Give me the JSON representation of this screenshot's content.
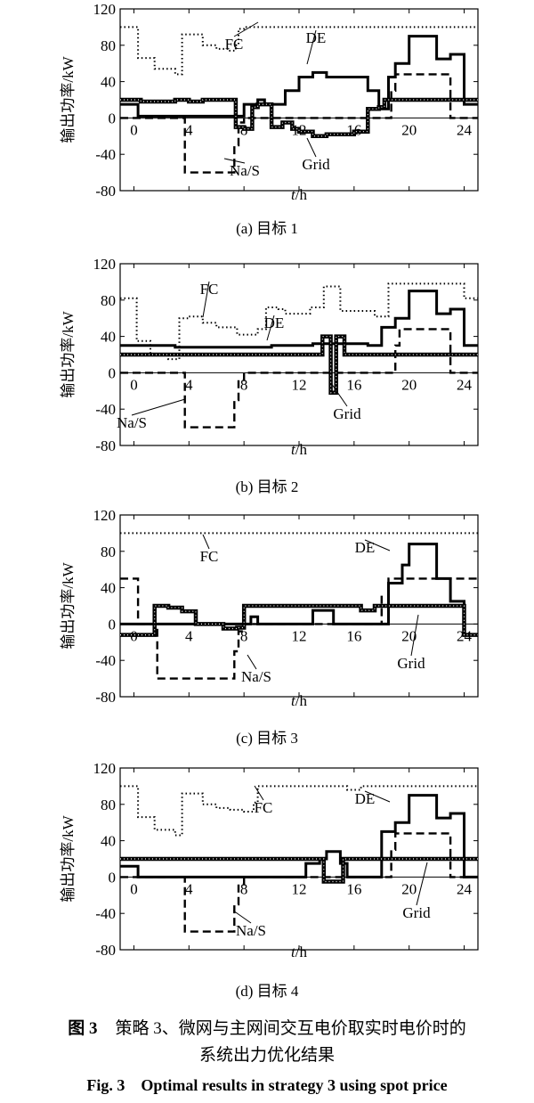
{
  "figure": {
    "caption_cn_prefix": "图 3",
    "caption_cn_text": "策略 3、微网与主网间交互电价取实时电价时的",
    "caption_cn_text2": "系统出力优化结果",
    "caption_en_prefix": "Fig. 3",
    "caption_en_text": "Optimal results in strategy 3 using spot price"
  },
  "chart_data": [
    {
      "type": "line",
      "subtitle": "(a)  目标 1",
      "ylabel": "输出功率/kW",
      "xlabel_italic": "t",
      "xlabel_unit": "/h",
      "xlim": [
        -1,
        25
      ],
      "ylim": [
        -80,
        120
      ],
      "xticks": [
        0,
        4,
        8,
        12,
        16,
        20,
        24
      ],
      "yticks": [
        -80,
        -40,
        0,
        40,
        80,
        120
      ],
      "series": [
        {
          "name": "FC",
          "style": "dotted",
          "x": [
            -1,
            0.3,
            0.3,
            1.5,
            1.5,
            3,
            3,
            3.5,
            3.5,
            5,
            5,
            6,
            6,
            6.8,
            6.8,
            7.4,
            7.4,
            7.6,
            7.6,
            8,
            8,
            25
          ],
          "y": [
            100,
            100,
            66,
            66,
            54,
            54,
            48,
            48,
            92,
            92,
            80,
            80,
            76,
            76,
            74,
            74,
            80,
            80,
            98,
            98,
            100,
            100
          ]
        },
        {
          "name": "DE",
          "style": "solid",
          "x": [
            -1,
            0.3,
            0.3,
            8,
            8,
            9,
            9,
            9.5,
            9.5,
            11,
            11,
            12,
            12,
            13,
            13,
            14,
            14,
            17,
            17,
            17.8,
            17.8,
            18.5,
            18.5,
            19,
            19,
            20,
            20,
            22,
            22,
            23,
            23,
            24,
            24,
            25
          ],
          "y": [
            15,
            15,
            2,
            2,
            15,
            15,
            20,
            20,
            15,
            15,
            30,
            30,
            45,
            45,
            50,
            50,
            45,
            45,
            30,
            30,
            10,
            10,
            45,
            45,
            60,
            60,
            90,
            90,
            65,
            65,
            70,
            70,
            15,
            15
          ]
        },
        {
          "name": "Na/S",
          "style": "dashed",
          "x": [
            -1,
            3.7,
            3.7,
            7.3,
            7.3,
            7.6,
            7.6,
            8,
            8,
            18.7,
            18.7,
            19,
            19,
            23,
            23,
            25
          ],
          "y": [
            0,
            0,
            -60,
            -60,
            -30,
            -30,
            -5,
            -5,
            0,
            0,
            30,
            30,
            48,
            48,
            0,
            0
          ]
        },
        {
          "name": "Grid",
          "style": "thick-marker",
          "x": [
            -1,
            0.5,
            0.5,
            3,
            3,
            4,
            4,
            5,
            5,
            7.4,
            7.4,
            8,
            8,
            8.6,
            8.6,
            9,
            9,
            10,
            10,
            10.8,
            10.8,
            11.5,
            11.5,
            12,
            12,
            13,
            13,
            14,
            14,
            16,
            16,
            17,
            17,
            17.8,
            17.8,
            18.2,
            18.2,
            25
          ],
          "y": [
            20,
            20,
            18,
            18,
            20,
            20,
            18,
            18,
            20,
            20,
            -10,
            -10,
            -12,
            -12,
            12,
            12,
            15,
            15,
            -10,
            -10,
            -5,
            -5,
            -12,
            -12,
            -15,
            -15,
            -20,
            -20,
            -18,
            -18,
            -15,
            -15,
            10,
            10,
            12,
            12,
            20,
            20
          ]
        }
      ],
      "annotations": [
        "FC",
        "DE",
        "Na/S",
        "Grid"
      ]
    },
    {
      "type": "line",
      "subtitle": "(b)  目标 2",
      "ylabel": "输出功率/kW",
      "xlabel_italic": "t",
      "xlabel_unit": "/h",
      "xlim": [
        -1,
        25
      ],
      "ylim": [
        -80,
        120
      ],
      "xticks": [
        0,
        4,
        8,
        12,
        16,
        20,
        24
      ],
      "yticks": [
        -80,
        -40,
        0,
        40,
        80,
        120
      ],
      "series": [
        {
          "name": "FC",
          "style": "dotted",
          "x": [
            -1,
            0.2,
            0.2,
            1.2,
            1.2,
            2.5,
            2.5,
            3.3,
            3.3,
            4,
            4,
            5,
            5,
            6,
            6,
            7.5,
            7.5,
            9,
            9,
            9.6,
            9.6,
            10.5,
            10.5,
            11,
            11,
            12.8,
            12.8,
            13.8,
            13.8,
            15,
            15,
            17.5,
            17.5,
            18.5,
            18.5,
            24,
            24,
            25
          ],
          "y": [
            82,
            82,
            35,
            35,
            20,
            20,
            15,
            15,
            60,
            60,
            62,
            62,
            55,
            55,
            50,
            50,
            42,
            42,
            48,
            48,
            72,
            72,
            70,
            70,
            65,
            65,
            72,
            72,
            95,
            95,
            68,
            68,
            62,
            62,
            98,
            98,
            82,
            82
          ]
        },
        {
          "name": "DE",
          "style": "solid",
          "x": [
            -1,
            3,
            3,
            10,
            10,
            13,
            13,
            17,
            17,
            18,
            18,
            19,
            19,
            20,
            20,
            22,
            22,
            23,
            23,
            24,
            24,
            25
          ],
          "y": [
            30,
            30,
            28,
            28,
            30,
            30,
            32,
            32,
            30,
            30,
            50,
            50,
            60,
            60,
            90,
            90,
            65,
            65,
            70,
            70,
            30,
            30
          ]
        },
        {
          "name": "Na/S",
          "style": "dashed",
          "x": [
            -1,
            3.7,
            3.7,
            7.3,
            7.3,
            7.6,
            7.6,
            8,
            8,
            19,
            19,
            19.3,
            19.3,
            23,
            23,
            25
          ],
          "y": [
            0,
            0,
            -60,
            -60,
            -30,
            -30,
            -8,
            -8,
            0,
            0,
            30,
            30,
            48,
            48,
            0,
            0
          ]
        },
        {
          "name": "Grid",
          "style": "thick-marker",
          "x": [
            -1,
            13.7,
            13.7,
            14.3,
            14.3,
            14.7,
            14.7,
            15.3,
            15.3,
            25
          ],
          "y": [
            20,
            20,
            40,
            40,
            -22,
            -22,
            40,
            40,
            20,
            20
          ]
        }
      ],
      "annotations": [
        "FC",
        "DE",
        "Na/S",
        "Grid"
      ]
    },
    {
      "type": "line",
      "subtitle": "(c)  目标 3",
      "ylabel": "输出功率/kW",
      "xlabel_italic": "t",
      "xlabel_unit": "/h",
      "xlim": [
        -1,
        25
      ],
      "ylim": [
        -80,
        120
      ],
      "xticks": [
        0,
        4,
        8,
        12,
        16,
        20,
        24
      ],
      "yticks": [
        -80,
        -40,
        0,
        40,
        80,
        120
      ],
      "series": [
        {
          "name": "FC",
          "style": "dotted",
          "x": [
            -1,
            25
          ],
          "y": [
            100,
            100
          ]
        },
        {
          "name": "DE",
          "style": "solid",
          "x": [
            -1,
            0.2,
            0.2,
            8,
            8,
            8.5,
            8.5,
            9,
            9,
            10,
            10,
            13,
            13,
            14.5,
            14.5,
            17.5,
            17.5,
            18.5,
            18.5,
            19.5,
            19.5,
            20,
            20,
            22,
            22,
            23,
            23,
            24,
            24,
            25
          ],
          "y": [
            0,
            0,
            0,
            0,
            0,
            0,
            8,
            8,
            0,
            0,
            0,
            0,
            15,
            15,
            0,
            0,
            0,
            0,
            45,
            45,
            65,
            65,
            88,
            88,
            50,
            50,
            25,
            25,
            -12,
            -12
          ]
        },
        {
          "name": "Na/S",
          "style": "dashed",
          "x": [
            -1,
            0.3,
            0.3,
            1.7,
            1.7,
            7.3,
            7.3,
            7.6,
            7.6,
            8,
            8,
            18,
            18,
            18.5,
            18.5,
            25
          ],
          "y": [
            50,
            50,
            0,
            0,
            -60,
            -60,
            -30,
            -30,
            -8,
            -8,
            0,
            0,
            30,
            30,
            50,
            50
          ]
        },
        {
          "name": "Grid",
          "style": "thick-marker",
          "x": [
            -1,
            1.5,
            1.5,
            2.5,
            2.5,
            3.5,
            3.5,
            4.5,
            4.5,
            6.5,
            6.5,
            7.5,
            7.5,
            8,
            8,
            16.5,
            16.5,
            17.5,
            17.5,
            24,
            24,
            25
          ],
          "y": [
            -12,
            -12,
            20,
            20,
            18,
            18,
            14,
            14,
            0,
            0,
            -5,
            -5,
            -4,
            -4,
            20,
            20,
            15,
            15,
            20,
            20,
            -12,
            -12
          ]
        }
      ],
      "annotations": [
        "FC",
        "DE",
        "Na/S",
        "Grid"
      ]
    },
    {
      "type": "line",
      "subtitle": "(d)  目标 4",
      "ylabel": "输出功率/kW",
      "xlabel_italic": "t",
      "xlabel_unit": "/h",
      "xlim": [
        -1,
        25
      ],
      "ylim": [
        -80,
        120
      ],
      "xticks": [
        0,
        4,
        8,
        12,
        16,
        20,
        24
      ],
      "yticks": [
        -80,
        -40,
        0,
        40,
        80,
        120
      ],
      "series": [
        {
          "name": "FC",
          "style": "dotted",
          "x": [
            -1,
            0.3,
            0.3,
            1.5,
            1.5,
            3,
            3,
            3.5,
            3.5,
            5,
            5,
            6,
            6,
            7,
            7,
            8,
            8,
            8.7,
            8.7,
            9,
            9,
            15.5,
            15.5,
            16.5,
            16.5,
            25
          ],
          "y": [
            100,
            100,
            66,
            66,
            52,
            52,
            46,
            46,
            92,
            92,
            80,
            80,
            76,
            76,
            74,
            74,
            72,
            72,
            82,
            82,
            100,
            100,
            96,
            96,
            100,
            100
          ]
        },
        {
          "name": "DE",
          "style": "solid",
          "x": [
            -1,
            0.3,
            0.3,
            12.5,
            12.5,
            13.5,
            13.5,
            14,
            14,
            15,
            15,
            15.5,
            15.5,
            18,
            18,
            19,
            19,
            20,
            20,
            22,
            22,
            23,
            23,
            24,
            24,
            25
          ],
          "y": [
            12,
            12,
            0,
            0,
            15,
            15,
            20,
            20,
            28,
            28,
            15,
            15,
            0,
            0,
            50,
            50,
            60,
            60,
            90,
            90,
            65,
            65,
            70,
            70,
            0,
            0
          ]
        },
        {
          "name": "Na/S",
          "style": "dashed",
          "x": [
            -1,
            3.7,
            3.7,
            7.3,
            7.3,
            7.6,
            7.6,
            8,
            8,
            18.7,
            18.7,
            19,
            19,
            23,
            23,
            25
          ],
          "y": [
            0,
            0,
            -60,
            -60,
            -30,
            -30,
            -8,
            -8,
            0,
            0,
            30,
            30,
            48,
            48,
            0,
            0
          ]
        },
        {
          "name": "Grid",
          "style": "thick-marker",
          "x": [
            -1,
            13.8,
            13.8,
            15.2,
            15.2,
            25
          ],
          "y": [
            20,
            20,
            -5,
            -5,
            20,
            20
          ]
        }
      ],
      "annotations": [
        "FC",
        "DE",
        "Na/S",
        "Grid"
      ]
    }
  ]
}
